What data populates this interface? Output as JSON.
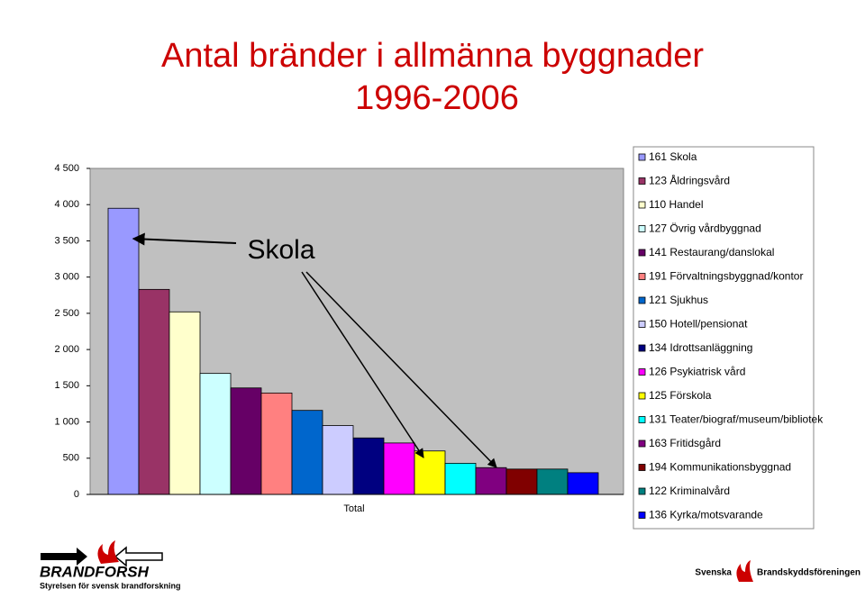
{
  "chart_data": {
    "type": "bar",
    "title": "Antal bränder i allmänna byggnader",
    "subtitle": "1996-2006",
    "categories": [
      "Total"
    ],
    "series": [
      {
        "name": "161 Skola",
        "color": "#9999ff",
        "values": [
          3950
        ]
      },
      {
        "name": "123 Åldringsvård",
        "color": "#993366",
        "values": [
          2830
        ]
      },
      {
        "name": "110 Handel",
        "color": "#ffffcc",
        "values": [
          2520
        ]
      },
      {
        "name": "127 Övrig vårdbyggnad",
        "color": "#ccffff",
        "values": [
          1670
        ]
      },
      {
        "name": "141 Restaurang/danslokal",
        "color": "#660066",
        "values": [
          1470
        ]
      },
      {
        "name": "191 Förvaltningsbyggnad/kontor",
        "color": "#ff8080",
        "values": [
          1400
        ]
      },
      {
        "name": "121 Sjukhus",
        "color": "#0066cc",
        "values": [
          1160
        ]
      },
      {
        "name": "150 Hotell/pensionat",
        "color": "#ccccff",
        "values": [
          950
        ]
      },
      {
        "name": "134 Idrottsanläggning",
        "color": "#000080",
        "values": [
          780
        ]
      },
      {
        "name": "126 Psykiatrisk vård",
        "color": "#ff00ff",
        "values": [
          710
        ]
      },
      {
        "name": "125 Förskola",
        "color": "#ffff00",
        "values": [
          600
        ]
      },
      {
        "name": "131 Teater/biograf/museum/bibliotek",
        "color": "#00ffff",
        "values": [
          430
        ]
      },
      {
        "name": "163 Fritidsgård",
        "color": "#800080",
        "values": [
          370
        ]
      },
      {
        "name": "194 Kommunikationsbyggnad",
        "color": "#800000",
        "values": [
          350
        ]
      },
      {
        "name": "122 Kriminalvård",
        "color": "#008080",
        "values": [
          350
        ]
      },
      {
        "name": "136 Kyrka/motsvarande",
        "color": "#0000ff",
        "values": [
          300
        ]
      }
    ],
    "ylim": [
      0,
      4500
    ],
    "yticks": [
      0,
      500,
      {
        "value": 1000,
        "label": "1 000"
      },
      {
        "value": 1500,
        "label": "1 500"
      },
      {
        "value": 2000,
        "label": "2 000"
      },
      {
        "value": 2500,
        "label": "2 500"
      },
      {
        "value": 3000,
        "label": "3 000"
      },
      {
        "value": 3500,
        "label": "3 500"
      },
      {
        "value": 4000,
        "label": "4 000"
      },
      {
        "value": 4500,
        "label": "4 500"
      }
    ],
    "annotation": "Skola"
  },
  "logos": {
    "left": "BRANDFORSH",
    "left_sub": "Styrelsen för svensk brandforskning",
    "right_1": "Svenska",
    "right_2": "Brandskyddsföreningen"
  }
}
